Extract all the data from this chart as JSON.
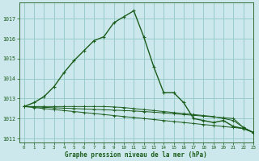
{
  "title": "Graphe pression niveau de la mer (hPa)",
  "bg_color": "#cce8ec",
  "grid_color": "#99cccc",
  "line_color": "#1a5c1a",
  "xlim": [
    -0.5,
    23
  ],
  "ylim": [
    1010.8,
    1017.8
  ],
  "yticks": [
    1011,
    1012,
    1013,
    1014,
    1015,
    1016,
    1017
  ],
  "xticks": [
    0,
    1,
    2,
    3,
    4,
    5,
    6,
    7,
    8,
    9,
    10,
    11,
    12,
    13,
    14,
    15,
    16,
    17,
    18,
    19,
    20,
    21,
    22,
    23
  ],
  "series_main": [
    1012.6,
    1012.8,
    1013.1,
    1013.6,
    1014.3,
    1014.9,
    1015.4,
    1015.9,
    1016.1,
    1016.8,
    1017.1,
    1017.4,
    1016.1,
    1014.6,
    1013.3,
    1013.3,
    1012.8,
    1012.0,
    1011.9,
    1011.8,
    1011.9,
    1011.6,
    1011.5,
    1011.3
  ],
  "series_flat1": [
    1012.6,
    1012.55,
    1012.5,
    1012.45,
    1012.4,
    1012.35,
    1012.3,
    1012.25,
    1012.2,
    1012.15,
    1012.1,
    1012.05,
    1012.0,
    1011.95,
    1011.9,
    1011.85,
    1011.8,
    1011.75,
    1011.7,
    1011.65,
    1011.6,
    1011.55,
    1011.5,
    1011.3
  ],
  "series_flat2": [
    1012.6,
    1012.58,
    1012.56,
    1012.54,
    1012.52,
    1012.5,
    1012.48,
    1012.46,
    1012.44,
    1012.42,
    1012.4,
    1012.38,
    1012.35,
    1012.32,
    1012.28,
    1012.24,
    1012.2,
    1012.16,
    1012.12,
    1012.08,
    1012.04,
    1012.0,
    1011.55,
    1011.3
  ],
  "series_flat3": [
    1012.6,
    1012.6,
    1012.6,
    1012.6,
    1012.6,
    1012.6,
    1012.6,
    1012.6,
    1012.6,
    1012.58,
    1012.55,
    1012.5,
    1012.45,
    1012.4,
    1012.35,
    1012.3,
    1012.25,
    1012.2,
    1012.15,
    1012.1,
    1012.0,
    1011.9,
    1011.55,
    1011.3
  ]
}
